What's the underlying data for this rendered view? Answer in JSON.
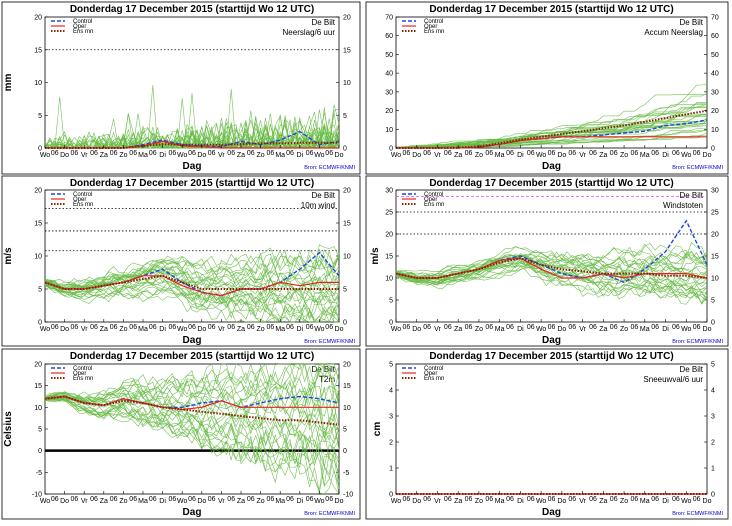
{
  "page": {
    "background": "#ffffff"
  },
  "colors": {
    "members": "#66bb44",
    "control": "#2244dd",
    "oper": "#ee2222",
    "ensmn": "#882200",
    "refline": "#000000",
    "threshold": "#ee44ee",
    "source": "#0000cc"
  },
  "common": {
    "title": "Donderdag 17 December  2015  (starttijd  Wo 12 UTC)",
    "station": "De Bilt",
    "xlabel": "Dag",
    "source": "Bron:  ECMWF/KNMI",
    "legend": [
      "Control",
      "Oper",
      "Ens mn"
    ],
    "days": [
      "Wo",
      "Do",
      "Vr",
      "Za",
      "Zo",
      "Ma",
      "Di",
      "Wo",
      "Do",
      "Vr",
      "Za",
      "Zo",
      "Ma",
      "Di",
      "Wo",
      "Do"
    ],
    "hour_mark": "06"
  },
  "chart_data": [
    {
      "type": "line",
      "variable": "Neerslag/6 uur",
      "ylabel": "mm",
      "ylim": [
        0,
        20
      ],
      "yticks": [
        0,
        5,
        10,
        15,
        20
      ],
      "dotted_lines": [
        15
      ],
      "x": [
        0,
        1,
        2,
        3,
        4,
        5,
        6,
        7,
        8,
        9,
        10,
        11,
        12,
        13,
        14,
        15
      ],
      "series": [
        {
          "name": "Control",
          "values": [
            0,
            0,
            0,
            0,
            0,
            0.5,
            1.2,
            0.5,
            0.3,
            0.2,
            1.0,
            0.5,
            1.2,
            2.5,
            0.5,
            1.0
          ]
        },
        {
          "name": "Oper",
          "values": [
            0,
            0,
            0,
            0,
            0,
            0.3,
            1.0,
            0.3,
            0.2,
            0,
            0,
            0,
            0,
            0,
            0,
            0
          ]
        },
        {
          "name": "Ens mn",
          "values": [
            0,
            0,
            0,
            0,
            0,
            0.3,
            0.6,
            0.5,
            0.5,
            0.5,
            0.6,
            0.7,
            0.7,
            0.8,
            0.8,
            0.8
          ]
        }
      ]
    },
    {
      "type": "line",
      "variable": "Accum Neerslag",
      "ylabel": "",
      "ylim": [
        0,
        70
      ],
      "yticks": [
        0,
        10,
        20,
        30,
        40,
        50,
        60,
        70
      ],
      "dotted_lines": [],
      "x": [
        0,
        1,
        2,
        3,
        4,
        5,
        6,
        7,
        8,
        9,
        10,
        11,
        12,
        13,
        14,
        15
      ],
      "series": [
        {
          "name": "Control",
          "values": [
            0,
            0,
            0,
            0,
            0.5,
            2,
            4,
            5,
            6,
            6,
            7,
            8,
            9,
            12,
            13,
            15
          ]
        },
        {
          "name": "Oper",
          "values": [
            0,
            0,
            0,
            0,
            0.5,
            2,
            4,
            5,
            6,
            6,
            6,
            6,
            6,
            6,
            6,
            6
          ]
        },
        {
          "name": "Ens mn",
          "values": [
            0,
            0,
            0,
            0.2,
            0.8,
            2.5,
            4.5,
            6,
            7.5,
            9,
            10.5,
            12,
            14,
            16,
            18,
            20
          ]
        }
      ]
    },
    {
      "type": "line",
      "variable": "10m wind",
      "ylabel": "m/s",
      "ylim": [
        0,
        20
      ],
      "yticks": [
        0,
        5,
        10,
        15,
        20
      ],
      "dotted_lines": [
        10.8,
        13.8,
        17.2
      ],
      "x": [
        0,
        1,
        2,
        3,
        4,
        5,
        6,
        7,
        8,
        9,
        10,
        11,
        12,
        13,
        14,
        15
      ],
      "series": [
        {
          "name": "Control",
          "values": [
            6,
            5,
            5,
            5.5,
            6,
            7,
            8,
            6,
            4.5,
            4,
            5,
            5,
            6,
            8,
            10.5,
            7
          ]
        },
        {
          "name": "Oper",
          "values": [
            6,
            5,
            5,
            5.5,
            6,
            7,
            7,
            5.5,
            4.5,
            4,
            5,
            5,
            6,
            5.5,
            6,
            6
          ]
        },
        {
          "name": "Ens mn",
          "values": [
            6,
            5,
            5,
            5.5,
            6,
            6.5,
            7,
            6,
            5,
            5,
            5,
            5,
            5,
            5,
            5,
            5
          ]
        }
      ]
    },
    {
      "type": "line",
      "variable": "Windstoten",
      "ylabel": "m/s",
      "ylim": [
        0,
        30
      ],
      "yticks": [
        0,
        5,
        10,
        15,
        20,
        25,
        30
      ],
      "dotted_lines": [
        20,
        25
      ],
      "dashed_lines": [
        28.5
      ],
      "x": [
        0,
        1,
        2,
        3,
        4,
        5,
        6,
        7,
        8,
        9,
        10,
        11,
        12,
        13,
        14,
        15
      ],
      "series": [
        {
          "name": "Control",
          "values": [
            11,
            10,
            10,
            11,
            12,
            14,
            15,
            13,
            11,
            10,
            11,
            9,
            12,
            16,
            23,
            13
          ]
        },
        {
          "name": "Oper",
          "values": [
            11,
            10,
            10,
            11,
            12,
            14,
            14.5,
            12,
            10,
            10,
            11,
            10,
            11,
            11,
            11,
            10
          ]
        },
        {
          "name": "Ens mn",
          "values": [
            11,
            10,
            10,
            11,
            12,
            13.5,
            14.5,
            13,
            12,
            11.5,
            11,
            11,
            11,
            10.5,
            10.5,
            10
          ]
        }
      ]
    },
    {
      "type": "line",
      "variable": "T2m",
      "ylabel": "Celsius",
      "ylim": [
        -10,
        20
      ],
      "yticks": [
        -10,
        -5,
        0,
        5,
        10,
        15,
        20
      ],
      "dotted_lines": [],
      "thick_lines": [
        0
      ],
      "x": [
        0,
        1,
        2,
        3,
        4,
        5,
        6,
        7,
        8,
        9,
        10,
        11,
        12,
        13,
        14,
        15
      ],
      "series": [
        {
          "name": "Control",
          "values": [
            12,
            12.5,
            11,
            10.5,
            12,
            11,
            10,
            10,
            11,
            11.5,
            10,
            11,
            12,
            12.5,
            12,
            11
          ]
        },
        {
          "name": "Oper",
          "values": [
            12,
            12.5,
            11,
            10.5,
            12,
            11,
            10,
            9.5,
            10,
            11.5,
            10,
            10,
            10,
            10,
            10,
            10
          ]
        },
        {
          "name": "Ens mn",
          "values": [
            12,
            12.5,
            11,
            10.5,
            11.5,
            11,
            10,
            9.5,
            9,
            8.5,
            8,
            7.5,
            7,
            7,
            6.5,
            6
          ]
        }
      ]
    },
    {
      "type": "line",
      "variable": "Sneeuwval/6 uur",
      "ylabel": "cm",
      "ylim": [
        0,
        5
      ],
      "yticks": [
        0,
        1,
        2,
        3,
        4,
        5
      ],
      "dotted_lines": [],
      "x": [
        0,
        1,
        2,
        3,
        4,
        5,
        6,
        7,
        8,
        9,
        10,
        11,
        12,
        13,
        14,
        15
      ],
      "series": [
        {
          "name": "Control",
          "values": [
            0,
            0,
            0,
            0,
            0,
            0,
            0,
            0,
            0,
            0,
            0,
            0,
            0,
            0,
            0,
            0
          ]
        },
        {
          "name": "Oper",
          "values": [
            0,
            0,
            0,
            0,
            0,
            0,
            0,
            0,
            0,
            0,
            0,
            0,
            0,
            0,
            0,
            0
          ]
        },
        {
          "name": "Ens mn",
          "values": [
            0,
            0,
            0,
            0,
            0,
            0,
            0,
            0,
            0,
            0,
            0,
            0,
            0,
            0,
            0,
            0
          ]
        }
      ]
    }
  ]
}
